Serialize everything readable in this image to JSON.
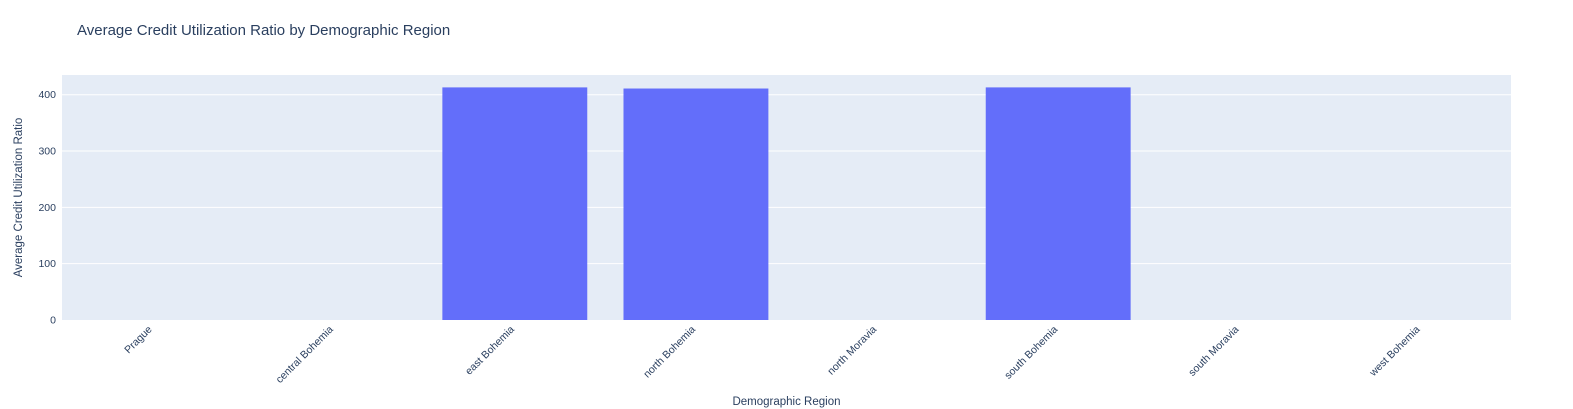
{
  "chart_data": {
    "type": "bar",
    "title": "Average Credit Utilization Ratio by Demographic Region",
    "xlabel": "Demographic Region",
    "ylabel": "Average Credit Utilization Ratio",
    "categories": [
      "Prague",
      "central Bohemia",
      "east Bohemia",
      "north Bohemia",
      "north Moravia",
      "south Bohemia",
      "south Moravia",
      "west Bohemia"
    ],
    "values": [
      0,
      0,
      413,
      411,
      0,
      413,
      0,
      0
    ],
    "ylim": [
      0,
      435
    ],
    "yticks": [
      0,
      100,
      200,
      300,
      400
    ],
    "grid": true,
    "legend": "none",
    "colors": {
      "bar": "#636efa",
      "plot_bg": "#e5ecf6",
      "grid": "#ffffff",
      "text": "#2a3f5f"
    }
  }
}
